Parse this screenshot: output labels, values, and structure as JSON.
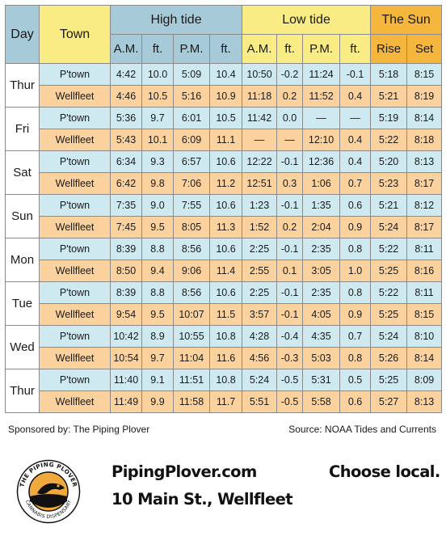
{
  "headers": {
    "day": "Day",
    "town": "Town",
    "high_tide": "High tide",
    "low_tide": "Low tide",
    "sun": "The Sun",
    "am": "A.M.",
    "ft": "ft.",
    "pm": "P.M.",
    "rise": "Rise",
    "set": "Set"
  },
  "days": [
    {
      "day": "Thur",
      "rows": [
        {
          "town": "P'town",
          "vals": [
            "4:42",
            "10.0",
            "5:09",
            "10.4",
            "10:50",
            "-0.2",
            "11:24",
            "-0.1",
            "5:18",
            "8:15"
          ]
        },
        {
          "town": "Wellfleet",
          "vals": [
            "4:46",
            "10.5",
            "5:16",
            "10.9",
            "11:18",
            "0.2",
            "11:52",
            "0.4",
            "5:21",
            "8:19"
          ]
        }
      ]
    },
    {
      "day": "Fri",
      "rows": [
        {
          "town": "P'town",
          "vals": [
            "5:36",
            "9.7",
            "6:01",
            "10.5",
            "11:42",
            "0.0",
            "—",
            "—",
            "5:19",
            "8:14"
          ]
        },
        {
          "town": "Wellfleet",
          "vals": [
            "5:43",
            "10.1",
            "6:09",
            "11.1",
            "—",
            "—",
            "12:10",
            "0.4",
            "5:22",
            "8:18"
          ]
        }
      ]
    },
    {
      "day": "Sat",
      "rows": [
        {
          "town": "P'town",
          "vals": [
            "6:34",
            "9.3",
            "6:57",
            "10.6",
            "12:22",
            "-0.1",
            "12:36",
            "0.4",
            "5:20",
            "8:13"
          ]
        },
        {
          "town": "Wellfleet",
          "vals": [
            "6:42",
            "9.8",
            "7:06",
            "11.2",
            "12:51",
            "0.3",
            "1:06",
            "0.7",
            "5:23",
            "8:17"
          ]
        }
      ]
    },
    {
      "day": "Sun",
      "rows": [
        {
          "town": "P'town",
          "vals": [
            "7:35",
            "9.0",
            "7:55",
            "10.6",
            "1:23",
            "-0.1",
            "1:35",
            "0.6",
            "5:21",
            "8:12"
          ]
        },
        {
          "town": "Wellfleet",
          "vals": [
            "7:45",
            "9.5",
            "8:05",
            "11.3",
            "1:52",
            "0.2",
            "2:04",
            "0.9",
            "5:24",
            "8:17"
          ]
        }
      ]
    },
    {
      "day": "Mon",
      "rows": [
        {
          "town": "P'town",
          "vals": [
            "8:39",
            "8.8",
            "8:56",
            "10.6",
            "2:25",
            "-0.1",
            "2:35",
            "0.8",
            "5:22",
            "8:11"
          ]
        },
        {
          "town": "Wellfleet",
          "vals": [
            "8:50",
            "9.4",
            "9:06",
            "11.4",
            "2:55",
            "0.1",
            "3:05",
            "1.0",
            "5:25",
            "8:16"
          ]
        }
      ]
    },
    {
      "day": "Tue",
      "rows": [
        {
          "town": "P'town",
          "vals": [
            "8:39",
            "8.8",
            "8:56",
            "10.6",
            "2:25",
            "-0.1",
            "2:35",
            "0.8",
            "5:22",
            "8:11"
          ]
        },
        {
          "town": "Wellfleet",
          "vals": [
            "9:54",
            "9.5",
            "10:07",
            "11.5",
            "3:57",
            "-0.1",
            "4:05",
            "0.9",
            "5:25",
            "8:15"
          ]
        }
      ]
    },
    {
      "day": "Wed",
      "rows": [
        {
          "town": "P'town",
          "vals": [
            "10:42",
            "8.9",
            "10:55",
            "10.8",
            "4:28",
            "-0.4",
            "4:35",
            "0.7",
            "5:24",
            "8:10"
          ]
        },
        {
          "town": "Wellfleet",
          "vals": [
            "10:54",
            "9.7",
            "11:04",
            "11.6",
            "4:56",
            "-0.3",
            "5:03",
            "0.8",
            "5:26",
            "8:14"
          ]
        }
      ]
    },
    {
      "day": "Thur",
      "rows": [
        {
          "town": "P'town",
          "vals": [
            "11:40",
            "9.1",
            "11:51",
            "10.8",
            "5:24",
            "-0.5",
            "5:31",
            "0.5",
            "5:25",
            "8:09"
          ]
        },
        {
          "town": "Wellfleet",
          "vals": [
            "11:49",
            "9.9",
            "11:58",
            "11.7",
            "5:51",
            "-0.5",
            "5:58",
            "0.6",
            "5:27",
            "8:13"
          ]
        }
      ]
    }
  ],
  "footer": {
    "sponsor": "Sponsored by: The Piping Plover",
    "source": "Source: NOAA Tides and Currents"
  },
  "ad": {
    "website": "PipingPlover.com",
    "address": "10 Main St., Wellfleet",
    "tagline": "Choose local.",
    "logo_top": "THE PIPING PLOVER",
    "logo_bottom": "CANNABIS DISPENSARY"
  },
  "colors": {
    "header_blue": "#a7cad8",
    "header_yellow": "#f9ec84",
    "header_orange": "#f5b63d",
    "ptown_row": "#cfe9f1",
    "wellfleet_row": "#fbd29e"
  }
}
